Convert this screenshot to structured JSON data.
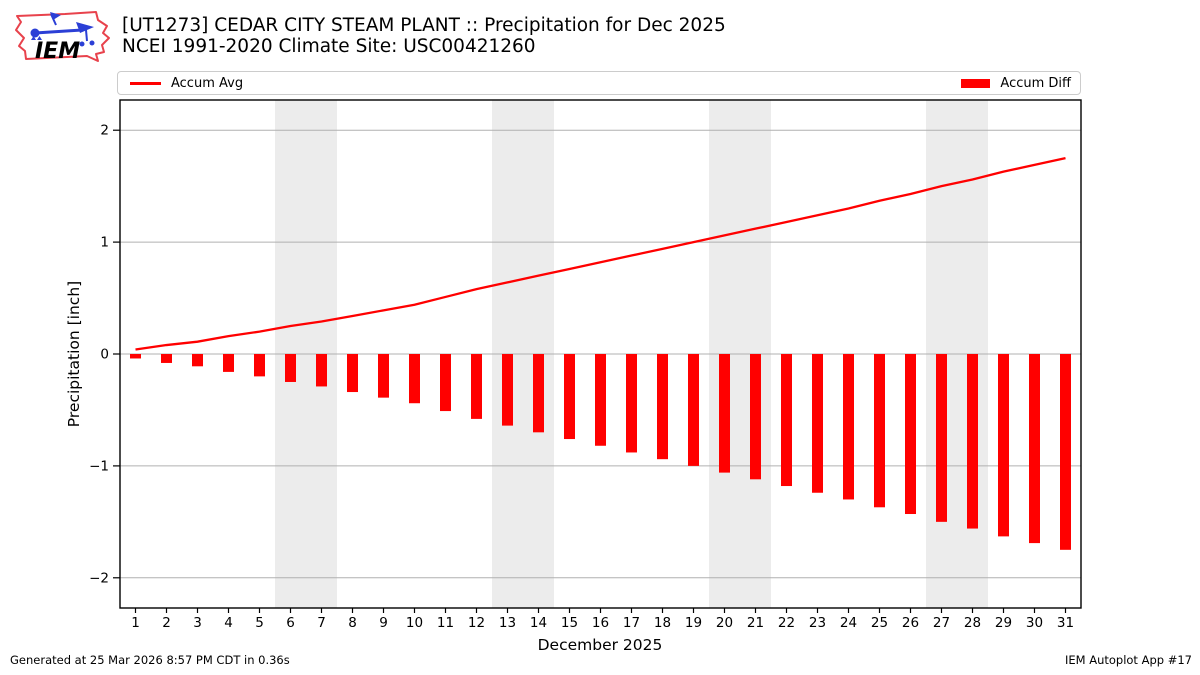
{
  "header": {
    "logo_text": "IEM",
    "title_line1": "[UT1273] CEDAR CITY STEAM PLANT :: Precipitation for Dec 2025",
    "title_line2": "NCEI 1991-2020 Climate Site: USC00421260"
  },
  "legend": {
    "avg_label": "Accum Avg",
    "diff_label": "Accum Diff",
    "swatch_color": "#ff0000"
  },
  "chart_data": {
    "type": "bar",
    "title": "[UT1273] CEDAR CITY STEAM PLANT :: Precipitation for Dec 2025",
    "subtitle": "NCEI 1991-2020 Climate Site: USC00421260",
    "xlabel": "December 2025",
    "ylabel": "Precipitation [inch]",
    "x": [
      1,
      2,
      3,
      4,
      5,
      6,
      7,
      8,
      9,
      10,
      11,
      12,
      13,
      14,
      15,
      16,
      17,
      18,
      19,
      20,
      21,
      22,
      23,
      24,
      25,
      26,
      27,
      28,
      29,
      30,
      31
    ],
    "series": [
      {
        "name": "Accum Avg",
        "type": "line",
        "color": "#ff0000",
        "values": [
          0.04,
          0.08,
          0.11,
          0.16,
          0.2,
          0.25,
          0.29,
          0.34,
          0.39,
          0.44,
          0.51,
          0.58,
          0.64,
          0.7,
          0.76,
          0.82,
          0.88,
          0.94,
          1.0,
          1.06,
          1.12,
          1.18,
          1.24,
          1.3,
          1.37,
          1.43,
          1.5,
          1.56,
          1.63,
          1.69,
          1.75
        ]
      },
      {
        "name": "Accum Diff",
        "type": "bar",
        "color": "#ff0000",
        "values": [
          -0.04,
          -0.08,
          -0.11,
          -0.16,
          -0.2,
          -0.25,
          -0.29,
          -0.34,
          -0.39,
          -0.44,
          -0.51,
          -0.58,
          -0.64,
          -0.7,
          -0.76,
          -0.82,
          -0.88,
          -0.94,
          -1.0,
          -1.06,
          -1.12,
          -1.18,
          -1.24,
          -1.3,
          -1.37,
          -1.43,
          -1.5,
          -1.56,
          -1.63,
          -1.69,
          -1.75
        ]
      }
    ],
    "ylim": [
      -2.27,
      2.27
    ],
    "y_ticks": [
      2,
      1,
      0,
      -1,
      -2
    ],
    "y_tick_labels": [
      "2",
      "1",
      "0",
      "−1",
      "−2"
    ],
    "grid": "horizontal",
    "grid_color": "#b0b0b0",
    "frame_color": "#000000",
    "weekend_bands": [
      [
        6,
        7
      ],
      [
        13,
        14
      ],
      [
        20,
        21
      ],
      [
        27,
        28
      ]
    ],
    "band_color": "#ececec",
    "legend_position": "top"
  },
  "footer": {
    "left": "Generated at 25 Mar 2026 8:57 PM CDT in 0.36s",
    "right": "IEM Autoplot App #17"
  }
}
